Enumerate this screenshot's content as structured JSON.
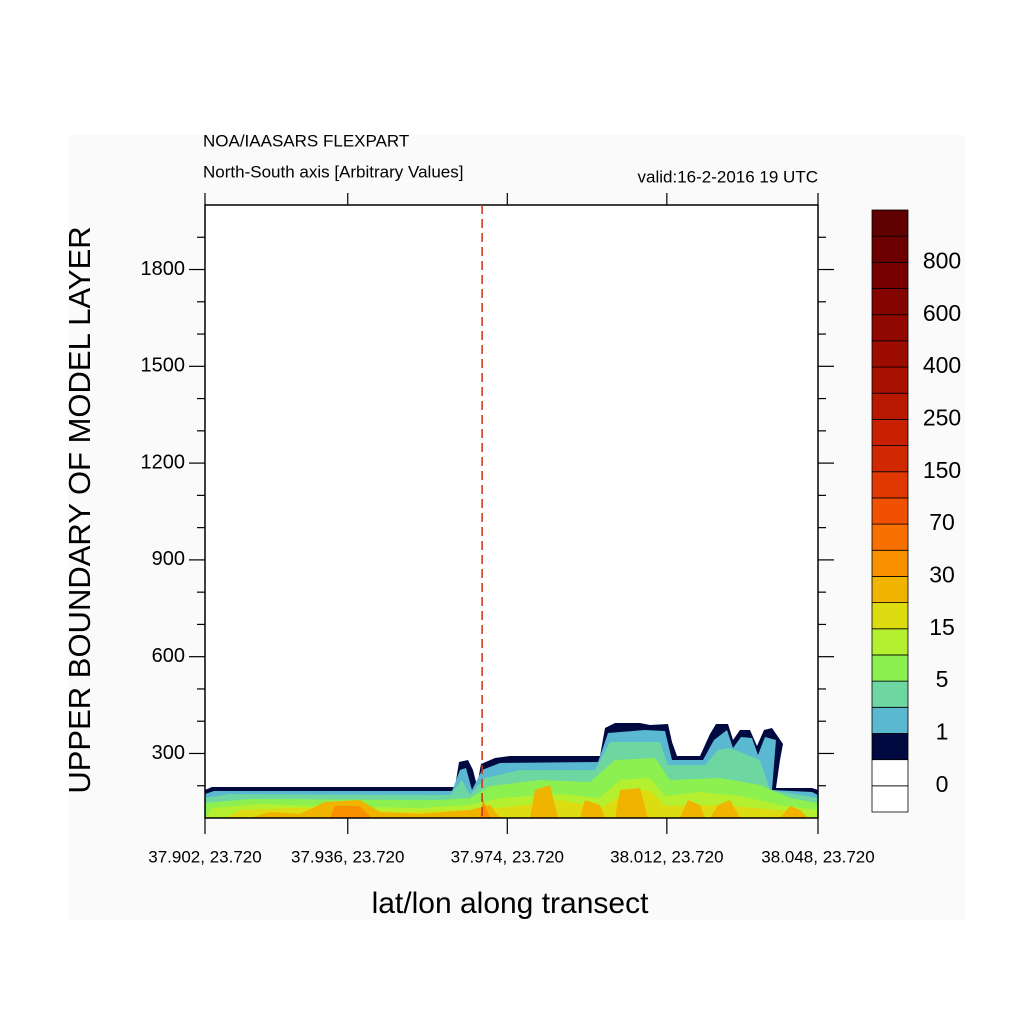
{
  "chart_data": {
    "type": "contour",
    "title": "NOA/IAASARS FLEXPART",
    "subtitle": "North-South axis [Arbitrary Values]",
    "annotation": "valid:16-2-2016 19 UTC",
    "y_label": "UPPER BOUNDARY OF MODEL LAYER",
    "x_label": "lat/lon along transect",
    "xlim": [
      37.902,
      38.048
    ],
    "xticks": [
      {
        "value": 37.902,
        "label": "37.902, 23.720"
      },
      {
        "value": 37.936,
        "label": "37.936, 23.720"
      },
      {
        "value": 37.974,
        "label": "37.974, 23.720"
      },
      {
        "value": 38.012,
        "label": "38.012, 23.720"
      },
      {
        "value": 38.048,
        "label": "38.048, 23.720"
      }
    ],
    "ylim": [
      100,
      2000
    ],
    "yticks": [
      300,
      600,
      900,
      1200,
      1500,
      1800
    ],
    "yminor_ticks": [
      200,
      400,
      500,
      700,
      800,
      1000,
      1100,
      1300,
      1400,
      1600,
      1700,
      1900
    ],
    "marker_x": 37.968,
    "marker_color": "#d03010",
    "colorbar": {
      "colors": [
        "#ffffff",
        "#ffffff",
        "#000a40",
        "#5ab8d0",
        "#6ed6a0",
        "#8cf050",
        "#b4f030",
        "#dcdc10",
        "#f0b400",
        "#f89000",
        "#f87000",
        "#f05000",
        "#e03800",
        "#d02800",
        "#c82000",
        "#b81800",
        "#a81000",
        "#9c0c00",
        "#900800",
        "#840400",
        "#780000",
        "#6c0000",
        "#600000"
      ],
      "labels": [
        0,
        1,
        5,
        15,
        30,
        70,
        150,
        250,
        400,
        600,
        800
      ]
    }
  }
}
